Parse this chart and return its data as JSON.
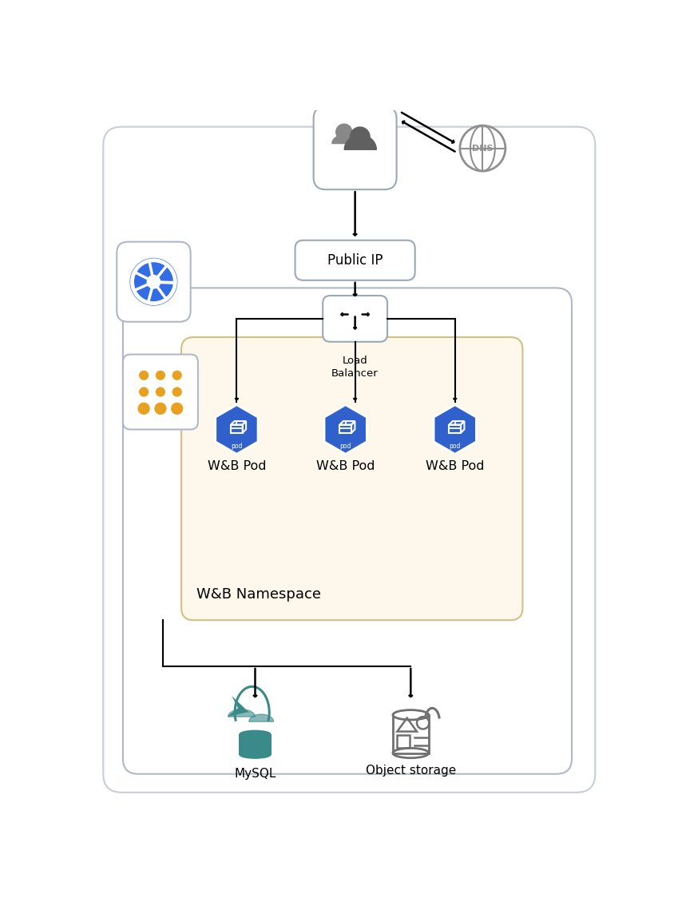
{
  "bg_color": "#ffffff",
  "outer_border_color": "#c8cdd6",
  "k8s_border_color": "#b0b8c8",
  "namespace_fill": "#fef8ec",
  "namespace_border": "#d4c080",
  "box_border": "#9aa8b8",
  "arrow_color": "#000000",
  "k8s_blue": "#326de6",
  "pod_blue": "#3060cc",
  "dot_orange": "#e8a020",
  "dns_gray": "#909090",
  "mysql_teal": "#3a8a8a",
  "storage_gray": "#707070",
  "public_ip_text": "Public IP",
  "load_balancer_text": "Load\nBalancer",
  "namespace_text": "W&B Namespace",
  "pod_labels": [
    "W&B Pod",
    "W&B Pod",
    "W&B Pod"
  ],
  "mysql_label": "MySQL",
  "storage_label": "Object storage",
  "fig_w": 8.45,
  "fig_h": 11.49
}
